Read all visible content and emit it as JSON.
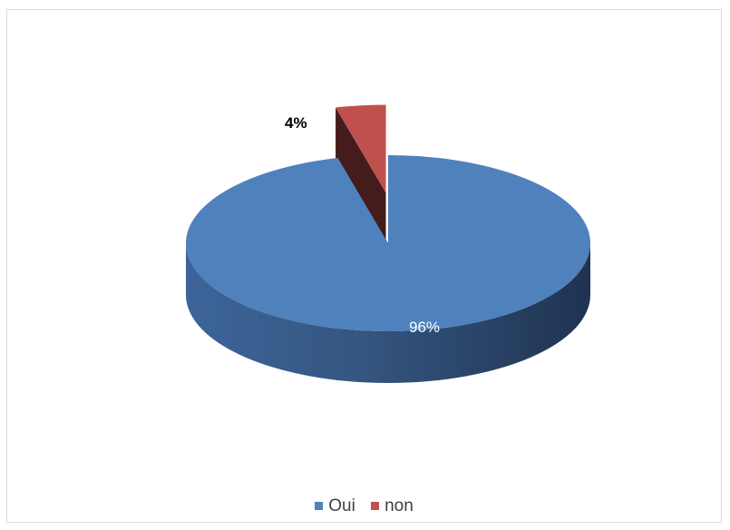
{
  "chart_data": {
    "type": "pie",
    "style": "3d-exploded",
    "slices": [
      {
        "label": "Oui",
        "value": 96,
        "display": "96%",
        "color": "#4f81bd"
      },
      {
        "label": "non",
        "value": 4,
        "display": "4%",
        "color": "#c0504d"
      }
    ],
    "legend": {
      "position": "bottom",
      "items": [
        "Oui",
        "non"
      ]
    },
    "title": ""
  }
}
